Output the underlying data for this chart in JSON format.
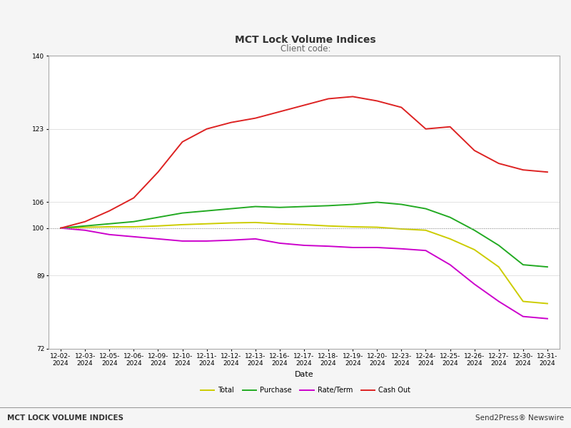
{
  "title": "MCT Lock Volume Indices",
  "subtitle": "Client code:",
  "xlabel": "Date",
  "ylim": [
    72,
    140
  ],
  "yticks": [
    72,
    89,
    100,
    106,
    123,
    140
  ],
  "hline_y": 100,
  "dates": [
    "12-02-\n2024",
    "12-03-\n2024",
    "12-05-\n2024",
    "12-06-\n2024",
    "12-09-\n2024",
    "12-10-\n2024",
    "12-11-\n2024",
    "12-12-\n2024",
    "12-13-\n2024",
    "12-16-\n2024",
    "12-17-\n2024",
    "12-18-\n2024",
    "12-19-\n2024",
    "12-20-\n2024",
    "12-23-\n2024",
    "12-24-\n2024",
    "12-25-\n2024",
    "12-26-\n2024",
    "12-27-\n2024",
    "12-30-\n2024",
    "12-31-\n2024"
  ],
  "total": [
    100,
    100.2,
    100.3,
    100.3,
    100.5,
    100.8,
    101.0,
    101.2,
    101.3,
    101.0,
    100.8,
    100.5,
    100.3,
    100.2,
    99.8,
    99.5,
    97.5,
    95.0,
    91.0,
    83.0,
    82.5
  ],
  "purchase": [
    100,
    100.5,
    101.0,
    101.5,
    102.5,
    103.5,
    104.0,
    104.5,
    105.0,
    104.8,
    105.0,
    105.2,
    105.5,
    106.0,
    105.5,
    104.5,
    102.5,
    99.5,
    96.0,
    91.5,
    91.0
  ],
  "rate_term": [
    100,
    99.5,
    98.5,
    98.0,
    97.5,
    97.0,
    97.0,
    97.2,
    97.5,
    96.5,
    96.0,
    95.8,
    95.5,
    95.5,
    95.2,
    94.8,
    91.5,
    87.0,
    83.0,
    79.5,
    79.0
  ],
  "cash_out": [
    100,
    101.5,
    104.0,
    107.0,
    113.0,
    120.0,
    123.0,
    124.5,
    125.5,
    127.0,
    128.5,
    130.0,
    130.5,
    129.5,
    128.0,
    123.0,
    123.5,
    118.0,
    115.0,
    113.5,
    113.0
  ],
  "total_color": "#cccc00",
  "purchase_color": "#22aa22",
  "rate_term_color": "#cc00cc",
  "cash_out_color": "#dd2222",
  "hline_color": "#aaaaaa",
  "grid_color": "#dddddd",
  "bg_color": "#ffffff",
  "border_color": "#aaaaaa",
  "plot_area_border": "#aaaaaa",
  "footer_bg": "#cccccc",
  "footer_left": "MCT LOCK VOLUME INDICES",
  "footer_right": "Send2Press® Newswire",
  "title_fontsize": 10,
  "subtitle_fontsize": 8.5,
  "tick_fontsize": 6.5,
  "xlabel_fontsize": 8,
  "legend_fontsize": 7,
  "line_width": 1.4
}
